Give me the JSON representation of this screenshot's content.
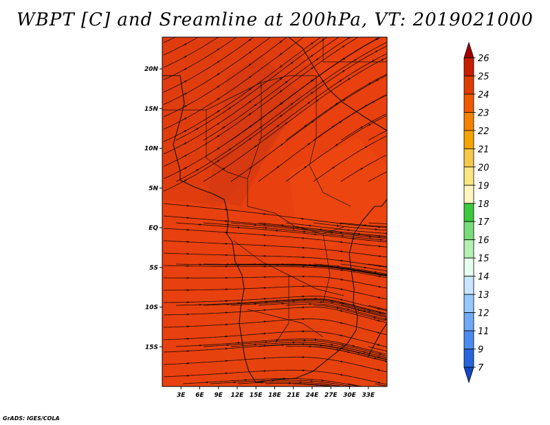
{
  "title": "WBPT [C] and Sreamline at 200hPa, VT: 2019021000",
  "credit": "GrADS: IGES/COLA",
  "map": {
    "lon_range": [
      0,
      36
    ],
    "lat_range": [
      -20,
      24
    ],
    "lon_ticks": [
      "3E",
      "6E",
      "9E",
      "12E",
      "15E",
      "18E",
      "21E",
      "24E",
      "27E",
      "30E",
      "33E"
    ],
    "lat_ticks": [
      "20N",
      "15N",
      "10N",
      "5N",
      "EQ",
      "5S",
      "10S",
      "15S"
    ],
    "fill_color": "#e8400e",
    "streamline_color": "#1a0a05"
  },
  "colorbar": {
    "labels": [
      "26",
      "25",
      "24",
      "23",
      "22",
      "21",
      "20",
      "19",
      "18",
      "17",
      "16",
      "15",
      "14",
      "13",
      "12",
      "11",
      "9",
      "7"
    ],
    "colors": [
      "#a50000",
      "#c81e00",
      "#e03c00",
      "#f05a00",
      "#f58200",
      "#f5a500",
      "#f5c84b",
      "#fae682",
      "#fff5be",
      "#3cc83c",
      "#78dc78",
      "#b4f0b4",
      "#e6fff0",
      "#c8e6ff",
      "#96c8ff",
      "#6eaaf5",
      "#4b8cf0",
      "#2864dc",
      "#1446c8"
    ]
  }
}
